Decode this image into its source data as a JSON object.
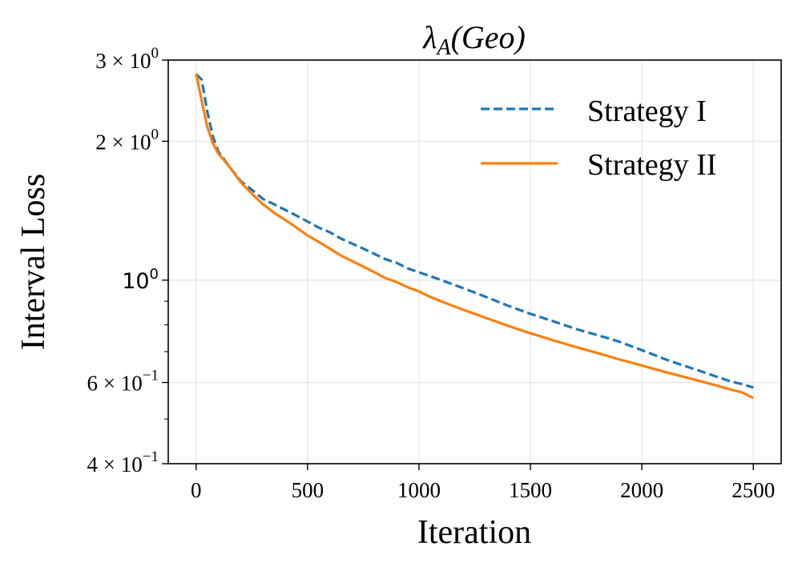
{
  "chart_data": {
    "type": "line",
    "title": {
      "symbol": "λ",
      "subscript": "A",
      "suffix": "(Geo)"
    },
    "xlabel": "Iteration",
    "ylabel": "Interval Loss",
    "xlim": [
      -125,
      2625
    ],
    "ylim": [
      0.4,
      3.0
    ],
    "yscale": "log",
    "x_ticks": [
      0,
      500,
      1000,
      1500,
      2000,
      2500
    ],
    "x_tick_labels": [
      "0",
      "500",
      "1000",
      "1500",
      "2000",
      "2500"
    ],
    "y_ticks": [
      {
        "value": 3.0,
        "mantissa": "3",
        "exponent": "0"
      },
      {
        "value": 2.0,
        "mantissa": "2",
        "exponent": "0"
      },
      {
        "value": 1.0,
        "mantissa": "",
        "exponent": "0"
      },
      {
        "value": 0.6,
        "mantissa": "6",
        "exponent": "−1"
      },
      {
        "value": 0.4,
        "mantissa": "4",
        "exponent": "−1"
      }
    ],
    "y_minor_ticks": [
      0.5,
      0.7,
      0.8,
      0.9
    ],
    "grid": true,
    "legend_position": "top-right",
    "series": [
      {
        "name": "Strategy I",
        "color": "#1f77b4",
        "linestyle": "dashed",
        "x": [
          0,
          25,
          50,
          75,
          100,
          150,
          200,
          250,
          300,
          350,
          400,
          450,
          500,
          550,
          600,
          650,
          700,
          750,
          800,
          850,
          900,
          950,
          1000,
          1050,
          1100,
          1150,
          1200,
          1250,
          1300,
          1350,
          1400,
          1450,
          1500,
          1550,
          1600,
          1650,
          1700,
          1750,
          1800,
          1850,
          1900,
          1950,
          2000,
          2050,
          2100,
          2150,
          2200,
          2250,
          2300,
          2350,
          2400,
          2450,
          2500
        ],
        "y": [
          2.8,
          2.72,
          2.32,
          2.05,
          1.9,
          1.76,
          1.64,
          1.57,
          1.5,
          1.46,
          1.42,
          1.38,
          1.34,
          1.3,
          1.27,
          1.23,
          1.2,
          1.17,
          1.14,
          1.11,
          1.09,
          1.06,
          1.04,
          1.02,
          1.0,
          0.98,
          0.96,
          0.94,
          0.92,
          0.9,
          0.88,
          0.862,
          0.845,
          0.83,
          0.815,
          0.8,
          0.785,
          0.772,
          0.76,
          0.748,
          0.735,
          0.72,
          0.705,
          0.69,
          0.675,
          0.662,
          0.65,
          0.638,
          0.626,
          0.614,
          0.603,
          0.595,
          0.585
        ]
      },
      {
        "name": "Strategy II",
        "color": "#ff7f0e",
        "linestyle": "solid",
        "x": [
          0,
          25,
          50,
          75,
          100,
          150,
          200,
          250,
          300,
          350,
          400,
          450,
          500,
          550,
          600,
          650,
          700,
          750,
          800,
          850,
          900,
          950,
          1000,
          1050,
          1100,
          1150,
          1200,
          1250,
          1300,
          1350,
          1400,
          1450,
          1500,
          1550,
          1600,
          1650,
          1700,
          1750,
          1800,
          1850,
          1900,
          1950,
          2000,
          2050,
          2100,
          2150,
          2200,
          2250,
          2300,
          2350,
          2400,
          2450,
          2500
        ],
        "y": [
          2.8,
          2.45,
          2.15,
          1.98,
          1.88,
          1.76,
          1.63,
          1.54,
          1.46,
          1.4,
          1.35,
          1.3,
          1.25,
          1.21,
          1.17,
          1.13,
          1.1,
          1.07,
          1.04,
          1.01,
          0.99,
          0.965,
          0.945,
          0.92,
          0.9,
          0.88,
          0.862,
          0.845,
          0.828,
          0.812,
          0.796,
          0.781,
          0.767,
          0.754,
          0.741,
          0.729,
          0.717,
          0.706,
          0.695,
          0.684,
          0.673,
          0.663,
          0.653,
          0.643,
          0.633,
          0.624,
          0.615,
          0.606,
          0.597,
          0.588,
          0.579,
          0.571,
          0.555
        ]
      }
    ]
  }
}
